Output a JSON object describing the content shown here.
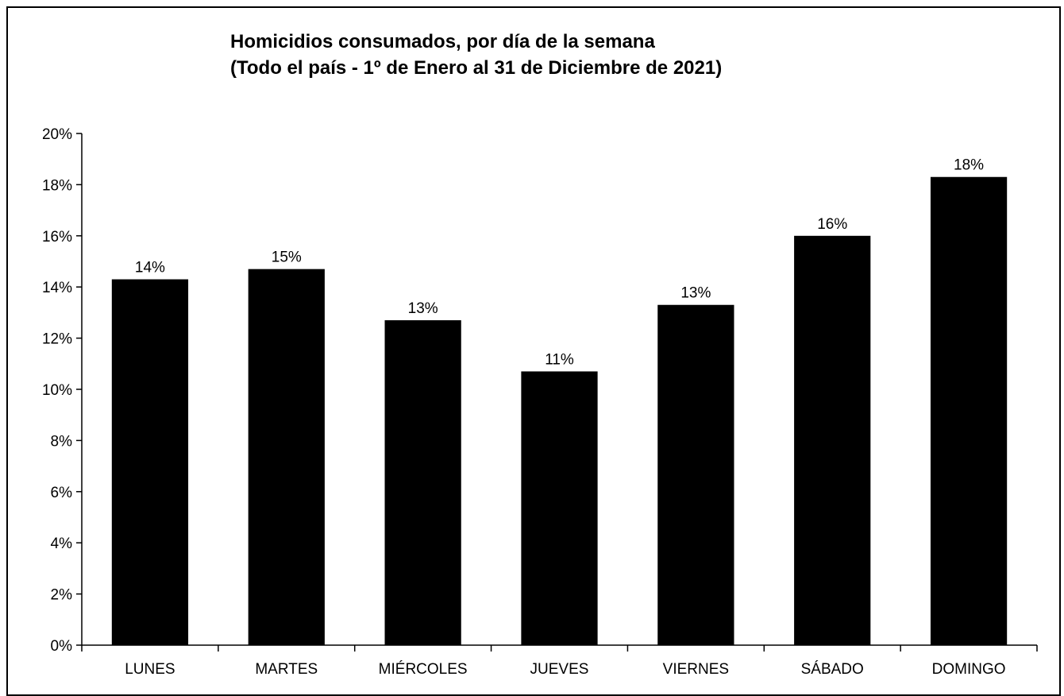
{
  "chart_data": {
    "type": "bar",
    "title": "Homicidios consumados, por día de la semana",
    "subtitle": "(Todo el país - 1º de Enero al 31 de Diciembre de 2021)",
    "categories": [
      "LUNES",
      "MARTES",
      "MIÉRCOLES",
      "JUEVES",
      "VIERNES",
      "SÁBADO",
      "DOMINGO"
    ],
    "values": [
      14.3,
      14.7,
      12.7,
      10.7,
      13.3,
      16.0,
      18.3
    ],
    "data_labels": [
      "14%",
      "15%",
      "13%",
      "11%",
      "13%",
      "16%",
      "18%"
    ],
    "y_ticks": [
      "0%",
      "2%",
      "4%",
      "6%",
      "8%",
      "10%",
      "12%",
      "14%",
      "16%",
      "18%",
      "20%"
    ],
    "ylim": [
      0,
      20
    ],
    "bar_color": "#000000",
    "grid": false,
    "legend": "none"
  }
}
